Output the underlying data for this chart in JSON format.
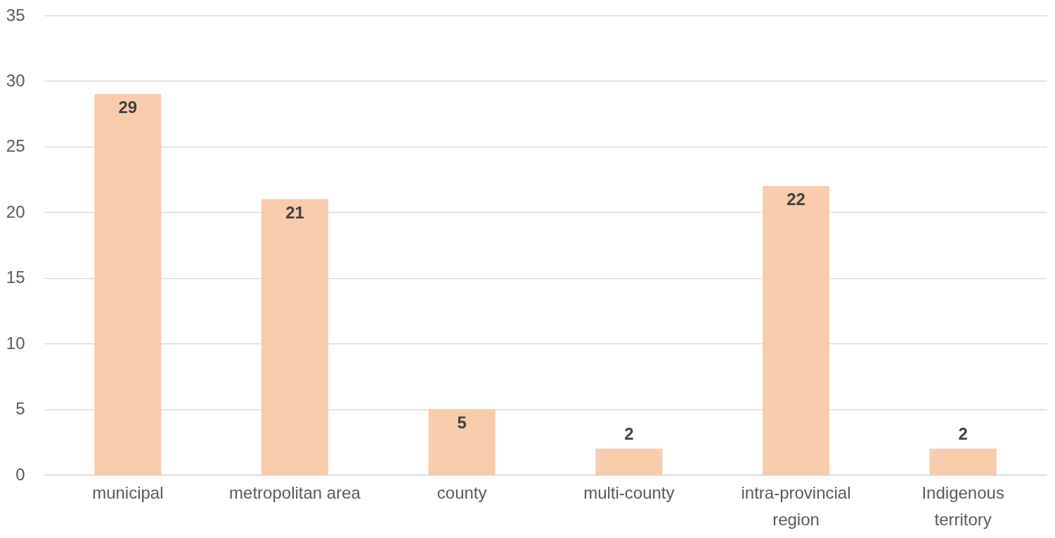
{
  "chart_data": {
    "type": "bar",
    "categories": [
      "municipal",
      "metropolitan area",
      "county",
      "multi-county",
      "intra-provincial region",
      "Indigenous territory"
    ],
    "values": [
      29,
      21,
      5,
      2,
      22,
      2
    ],
    "color": "#f8cbad",
    "ylim": [
      0,
      35
    ],
    "yticks": [
      0,
      5,
      10,
      15,
      20,
      25,
      30,
      35
    ],
    "grid": "y",
    "data_labels": true
  }
}
